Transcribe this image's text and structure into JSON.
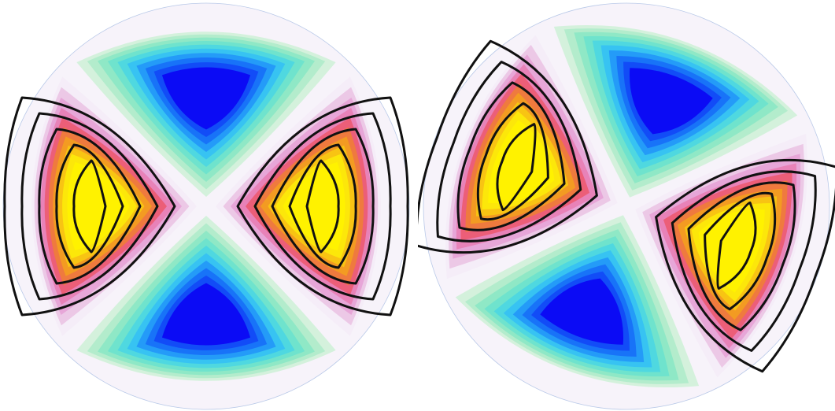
{
  "figure": {
    "panels": [
      {
        "id": "left",
        "rotation_deg": 0,
        "contour_loops": 5,
        "lobes": [
          {
            "sign": "negative",
            "color": "#0b0bf5",
            "direction": "top"
          },
          {
            "sign": "positive",
            "color": "#fff200",
            "direction": "right"
          },
          {
            "sign": "negative",
            "color": "#0b0bf5",
            "direction": "bottom"
          },
          {
            "sign": "positive",
            "color": "#fff200",
            "direction": "left"
          }
        ]
      },
      {
        "id": "right",
        "rotation_deg": 20,
        "contour_loops": 5,
        "lobes": [
          {
            "sign": "negative",
            "color": "#0b0bf5",
            "direction": "top"
          },
          {
            "sign": "positive",
            "color": "#fff200",
            "direction": "right"
          },
          {
            "sign": "negative",
            "color": "#0b0bf5",
            "direction": "bottom"
          },
          {
            "sign": "positive",
            "color": "#fff200",
            "direction": "left"
          }
        ]
      }
    ],
    "palette": {
      "negative": [
        "#d4f1dc",
        "#b3eccc",
        "#8fe8c6",
        "#6fe3cd",
        "#4fd8e0",
        "#37c3f2",
        "#249bf8",
        "#1873f8",
        "#124cf7",
        "#0b0bf5"
      ],
      "positive": [
        "#f5edf8",
        "#ecc8e6",
        "#e7a6d8",
        "#e882b8",
        "#ec5e78",
        "#ef7a3e",
        "#f39b22",
        "#f8c413",
        "#fce70a",
        "#fff200"
      ],
      "contour_line": "#111111",
      "background": "#ffffff"
    }
  }
}
